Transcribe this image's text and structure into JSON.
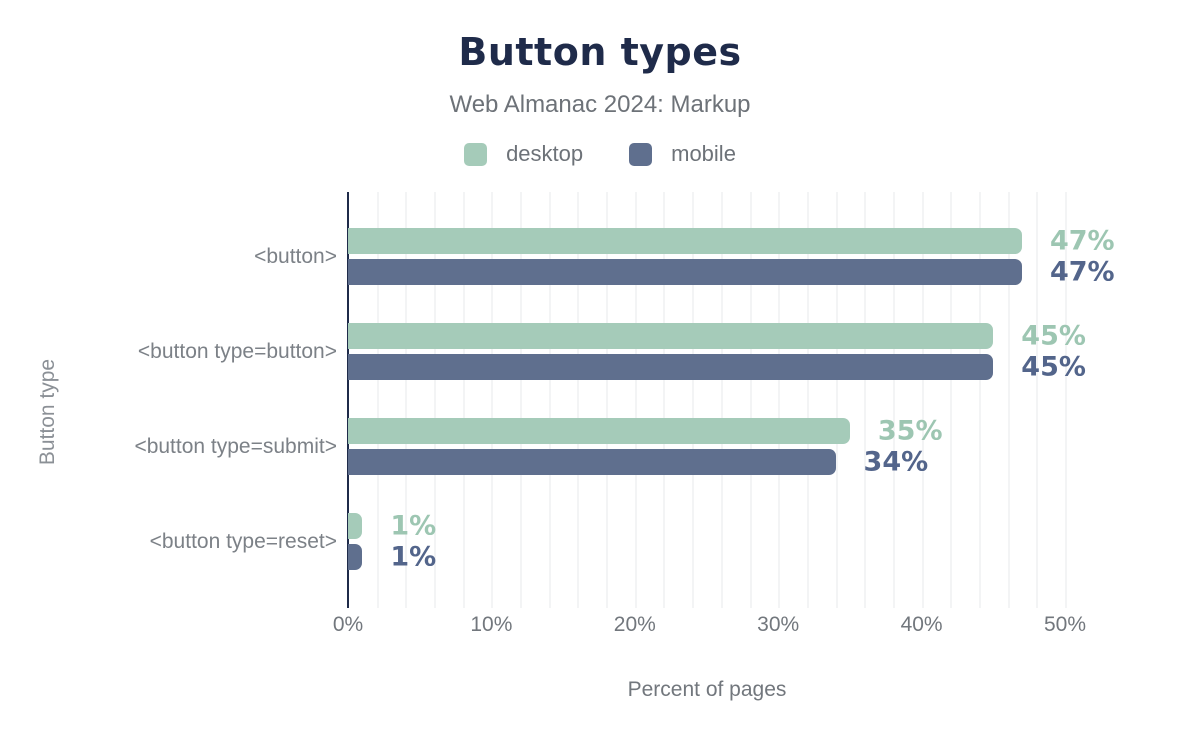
{
  "chart_data": {
    "type": "bar",
    "orientation": "horizontal",
    "title": "Button types",
    "subtitle": "Web Almanac 2024: Markup",
    "xlabel": "Percent of pages",
    "ylabel": "Button type",
    "categories": [
      "<button>",
      "<button type=button>",
      "<button type=submit>",
      "<button type=reset>"
    ],
    "series": [
      {
        "name": "desktop",
        "color": "#a5cbb9",
        "label_color": "#9dc6b2",
        "values": [
          47,
          45,
          35,
          1
        ],
        "labels": [
          "47%",
          "45%",
          "35%",
          "1%"
        ]
      },
      {
        "name": "mobile",
        "color": "#5f6f8e",
        "label_color": "#53658b",
        "values": [
          47,
          45,
          34,
          1
        ],
        "labels": [
          "47%",
          "45%",
          "34%",
          "1%"
        ]
      }
    ],
    "xlim": [
      0,
      55
    ],
    "xticks": [
      {
        "value": 0,
        "label": "0%"
      },
      {
        "value": 10,
        "label": "10%"
      },
      {
        "value": 20,
        "label": "20%"
      },
      {
        "value": 30,
        "label": "30%"
      },
      {
        "value": 40,
        "label": "40%"
      },
      {
        "value": 50,
        "label": "50%"
      }
    ],
    "minor_grid_step_pct": 2,
    "grid": true,
    "legend_position": "top"
  },
  "colors": {
    "title": "#1f2b4a",
    "subtitle_text": "#6d7278",
    "axis_line": "#1f2b4a",
    "grid_line": "#f3f4f5",
    "tick_text": "#72777d",
    "category_text": "#7c8187",
    "background": "#ffffff"
  }
}
